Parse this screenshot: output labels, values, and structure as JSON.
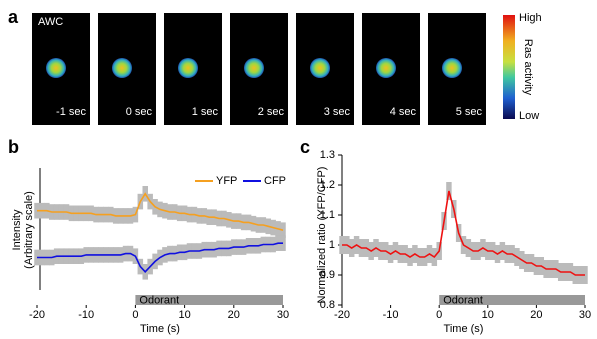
{
  "figure": {
    "panel_labels": [
      "a",
      "b",
      "c"
    ],
    "cell": "AWC",
    "frames": [
      "-1 sec",
      "0 sec",
      "1 sec",
      "2 sec",
      "3 sec",
      "4 sec",
      "5 sec"
    ],
    "colorbar": {
      "high": "High",
      "low": "Low",
      "label": "Ras activity"
    }
  },
  "chart_data": [
    {
      "type": "line",
      "x_label": "Time (s)",
      "y_label": [
        "Intensity",
        "(Arbitrary scale)"
      ],
      "x": [
        -20,
        -19,
        -18,
        -17,
        -16,
        -15,
        -14,
        -13,
        -12,
        -11,
        -10,
        -9,
        -8,
        -7,
        -6,
        -5,
        -4,
        -3,
        -2,
        -1,
        0,
        1,
        2,
        3,
        4,
        5,
        6,
        7,
        8,
        9,
        10,
        11,
        12,
        13,
        14,
        15,
        16,
        17,
        18,
        19,
        20,
        21,
        22,
        23,
        24,
        25,
        26,
        27,
        28,
        29,
        30
      ],
      "xlim": [
        -20,
        30
      ],
      "xticks": [
        -20,
        -10,
        0,
        10,
        20,
        30
      ],
      "ylim": [
        0,
        100
      ],
      "odorant": {
        "label": "Odorant",
        "start": 0,
        "end": 30
      },
      "series": [
        {
          "name": "YFP",
          "color": "#f5a020",
          "error": 6,
          "values": [
            61,
            61,
            61,
            60,
            60,
            60,
            60,
            59,
            59,
            59,
            59,
            59,
            58,
            58,
            58,
            58,
            57,
            57,
            57,
            57,
            58,
            68,
            74,
            68,
            64,
            62,
            61,
            60,
            60,
            59,
            59,
            58,
            58,
            57,
            57,
            56,
            56,
            55,
            55,
            54,
            53,
            53,
            52,
            52,
            51,
            50,
            50,
            49,
            48,
            47,
            46
          ]
        },
        {
          "name": "CFP",
          "color": "#1010e0",
          "error": 6,
          "values": [
            25,
            25,
            25,
            25,
            26,
            26,
            26,
            26,
            26,
            26,
            27,
            27,
            27,
            27,
            27,
            27,
            27,
            27,
            28,
            28,
            26,
            18,
            14,
            18,
            22,
            25,
            27,
            28,
            28,
            29,
            29,
            30,
            30,
            30,
            31,
            31,
            31,
            32,
            32,
            32,
            33,
            33,
            33,
            34,
            34,
            34,
            35,
            35,
            35,
            36,
            36
          ]
        }
      ]
    },
    {
      "type": "line",
      "x_label": "Time (s)",
      "y_label": [
        "Normalized ratio (YFP/CFP)"
      ],
      "x": [
        -20,
        -19,
        -18,
        -17,
        -16,
        -15,
        -14,
        -13,
        -12,
        -11,
        -10,
        -9,
        -8,
        -7,
        -6,
        -5,
        -4,
        -3,
        -2,
        -1,
        0,
        1,
        2,
        3,
        4,
        5,
        6,
        7,
        8,
        9,
        10,
        11,
        12,
        13,
        14,
        15,
        16,
        17,
        18,
        19,
        20,
        21,
        22,
        23,
        24,
        25,
        26,
        27,
        28,
        29,
        30
      ],
      "xlim": [
        -20,
        30
      ],
      "xticks": [
        -20,
        -10,
        0,
        10,
        20,
        30
      ],
      "ylim": [
        0.8,
        1.3
      ],
      "yticks": [
        0.8,
        0.9,
        1,
        1.1,
        1.2,
        1.3
      ],
      "odorant": {
        "label": "Odorant",
        "start": 0,
        "end": 30
      },
      "series": [
        {
          "color": "#ee1111",
          "error": 0.03,
          "values": [
            1.0,
            1.0,
            0.99,
            1.0,
            0.99,
            0.99,
            0.98,
            0.99,
            0.98,
            0.98,
            0.97,
            0.98,
            0.97,
            0.97,
            0.96,
            0.97,
            0.96,
            0.96,
            0.97,
            0.96,
            0.98,
            1.08,
            1.18,
            1.12,
            1.04,
            1.0,
            0.99,
            0.98,
            0.98,
            0.99,
            0.98,
            0.98,
            0.97,
            0.98,
            0.97,
            0.97,
            0.96,
            0.95,
            0.94,
            0.94,
            0.93,
            0.93,
            0.92,
            0.92,
            0.92,
            0.91,
            0.91,
            0.91,
            0.9,
            0.9,
            0.9
          ]
        }
      ]
    }
  ]
}
